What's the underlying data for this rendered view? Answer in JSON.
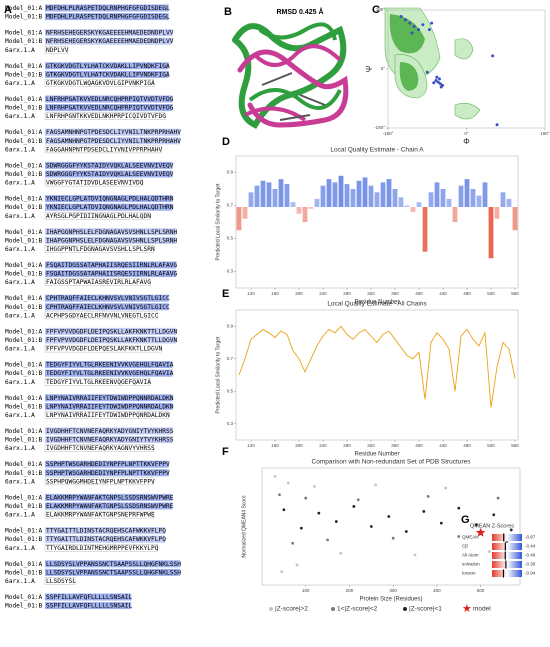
{
  "panels": [
    "A",
    "B",
    "C",
    "D",
    "E",
    "F",
    "G"
  ],
  "structure": {
    "label": "RMSD 0.425 Å"
  },
  "alignment": {
    "labels": [
      "Model_01:A",
      "Model_01:B",
      "6arx.1.A"
    ],
    "blocks": [
      [
        "MDFDHLPLRASPETDQLRNPHGFGFGDISDEGL",
        "MDFDHLPLRASPETDQLRNPHGFGFGDISDEGL",
        null
      ],
      [
        "NFRHSEHEGERSKYKGAEEEEHMAEDEDNDPLVV",
        "NFRHSEHEGERSKYKGAEEEEHMAEDEDNDPLVV",
        "NDPLVV"
      ],
      [
        "GTKGKVDGTLYLHATCKVDAKLLIPVNDKFIGA",
        "GTKGKVDGTLYLHATCKVDAKLLIPVNDKFIGA",
        "GTKGKVDGTLWQAGKVDVLGIPVNKPIGA"
      ],
      [
        "LNFRHPGATKVVEDLNRCQHPRPIQTVVDTVFDG",
        "LNFRHPGATKVVEDLNRCQHPRPIQTVVDTVFDG",
        "LNFRHPGNTKKVEDLNKHPRPICQIVDTVFDG"
      ],
      [
        "FAGSAMNHNPGTPDESDCLIYVNILTNKPRPRHAHV",
        "FAGSAMNHNPGTPDESDCLIYVNILTNKPRPRHAHV",
        "FAGGAHNPNTPDSEDCLIYVNIVPPRPHAHV"
      ],
      [
        "SDWRGGGFYYKSTAIDYVQKLALSEEVNVIVEQV",
        "SDWRGGGFYYKSTAIDYVQKLALSEEVNVIVEQV",
        "VWGGFYGTATIDVDLASEEVNVIVDQ"
      ],
      [
        "YKNIECLGPLATDVIQNGNAGLPDLHALQDTHRN",
        "YKNIECLGPLATDVIQNGNAGLPDLHALQDTHRN",
        "AYRSGLPGPIDIINGNAGLPDLHALQDN"
      ],
      [
        "IHAPGGNPHSLELFDGNAGAVSVSHNLLSPLSRNH",
        "IHAPGGNPHSLELFDGNAGAVSVSHNLLSPLSRNH",
        "IHGGPPNTLFDGNAGAVSVSHLLSPLSRN"
      ],
      [
        "FSQAITDGSSATAPHAIISRQESIIRNLRLAFAVG",
        "FSQAITDGSSATAPHAIISRQESIIRNLRLAFAVG",
        "FAIGSSPTAPWAIASREVIRLRLAFAVG"
      ],
      [
        "CPHTRAQFFAIECLKHNVSVLVNIVSGTLGICC",
        "CPHTRAQFFAIECLKHNVSVLVNIVSGTLGICC",
        "ACPHPSGDYAECLRFNVVNLVNEGTLGICC"
      ],
      [
        "FPFVPVVDGDFLDEIPQSKLLAKFKNKTTLLDGVN",
        "FPFVPVVDGDFLDEIPQSKLLAKFKNKTTLLDGVN",
        "FPFVPVVDGDFLDEPQESLAKFKKTLLDGVN"
      ],
      [
        "TEDGYFIYVLTGLRKEENIVVKVGEHQLFQAVIA",
        "TEDGYFIYVLTGLRKEENIVVKVGEHQLFQAVIA",
        "TEDGYFIYVLTGLRKEENVQGEFQAVIA"
      ],
      [
        "LNPYNAIVRRAIIFEYTDWIWDPPQNNRDALDKN",
        "LNPYNAIVRRAIIFEYTDWIWDPPQNNRDALDKN",
        "LNPYNAIVRRAIIFEYTDWIWDPPQNRDALDKN"
      ],
      [
        "IVGDHHFTCNVNEFAQRKYADYGNIYTVYKHRSS",
        "IVGDHHFTCNVNEFAQRKYADYGNIYTVYKHRSS",
        "IVGDHHFTCNVNEFAQRKYAGNVYVHRSS"
      ],
      [
        "SSPHPTWSGARHDEDIYNPFPLNPTTKKVFPPV",
        "SSPHPTWSGARHDEDIYNPFPLNPTTKKVFPPV",
        "SSPHPQWGGMHDEIYNFPLNPTKKVFPPV"
      ],
      [
        "ELAKKMRPYWANFAKTGNPSLSSDSRNSWVPWRE",
        "ELAKKMRPYWANFAKTGNPSLSSDSRNSWVPWRE",
        "ELAKKMRPYWANFAKTGNPSNEPRFWPWE"
      ],
      [
        "TTYGAITTLDINSTACRQEHSCAFWKKVFLPQ",
        "TTYGAITTLDINSTACRQEHSCAFWKKVFLPQ",
        "TTYGAIRDLDINTMEHGMRPPEVFKKYLPQ"
      ],
      [
        "LLSDSYSLVPPANSSNCTSAAPSSLLQHGFNKLSSH",
        "LLSDSYSLVPPANSSNCTSAAPSSLLQHGFNKLSSH",
        "LLSDSYSL"
      ],
      [
        "SSPFILLAVFQFLLLLLSNSAIL",
        "SSPFILLAVFQFLLLLLSNSAIL",
        null
      ]
    ]
  },
  "chart_data": [
    {
      "type": "scatter",
      "y_label": "Ψ",
      "x_label": "Φ",
      "xlim": [
        -180,
        180
      ],
      "ylim": [
        -180,
        180
      ],
      "xticks": [
        {
          "value": -180,
          "label": "-180°"
        },
        {
          "value": 0,
          "label": "0°"
        },
        {
          "value": 180,
          "label": "180°"
        }
      ],
      "yticks": [
        {
          "value": -180,
          "label": "-180°"
        },
        {
          "value": 0,
          "label": "0°"
        },
        {
          "value": 180,
          "label": "180°"
        }
      ],
      "color": "#3b4fc4",
      "x": [
        -65,
        -60,
        -70,
        -55,
        -75,
        -62,
        -58,
        -68,
        -120,
        -130,
        -110,
        -140,
        -100,
        -125,
        -80,
        -90,
        60,
        -150,
        70,
        -85
      ],
      "values": [
        -40,
        -45,
        -35,
        -50,
        -42,
        -30,
        -55,
        -25,
        130,
        140,
        120,
        150,
        135,
        110,
        140,
        -10,
        40,
        160,
        -170,
        120
      ]
    },
    {
      "type": "bar",
      "title": "Local Quality Estimate - Chain A",
      "y_label": "Predicted Local Similarity to Target",
      "x_label": "Residue Number",
      "xlim": [
        95,
        565
      ],
      "ylim": [
        0.2,
        1.0
      ],
      "xticks": [
        120,
        160,
        200,
        240,
        280,
        320,
        360,
        400,
        440,
        480,
        520,
        560
      ],
      "yticks": [
        0.3,
        0.5,
        0.7,
        0.9
      ],
      "colors": [
        "#e8604a",
        "#4a6fe0"
      ],
      "x": [
        100,
        110,
        120,
        130,
        140,
        150,
        160,
        170,
        180,
        190,
        200,
        210,
        220,
        230,
        240,
        250,
        260,
        270,
        280,
        290,
        300,
        310,
        320,
        330,
        340,
        350,
        360,
        370,
        380,
        390,
        400,
        410,
        420,
        430,
        440,
        450,
        460,
        470,
        480,
        490,
        500,
        510,
        520,
        530,
        540,
        550,
        560
      ],
      "values": [
        0.55,
        0.62,
        0.78,
        0.82,
        0.85,
        0.84,
        0.8,
        0.86,
        0.83,
        0.72,
        0.65,
        0.6,
        0.68,
        0.74,
        0.82,
        0.86,
        0.84,
        0.88,
        0.83,
        0.8,
        0.85,
        0.87,
        0.82,
        0.78,
        0.84,
        0.86,
        0.8,
        0.75,
        0.7,
        0.66,
        0.72,
        0.42,
        0.78,
        0.84,
        0.8,
        0.74,
        0.6,
        0.82,
        0.86,
        0.8,
        0.76,
        0.84,
        0.38,
        0.62,
        0.78,
        0.74,
        0.55
      ]
    },
    {
      "type": "line",
      "title": "Local Quality Estimate - All Chains",
      "y_label": "Predicted Local Similarity to Target",
      "x_label": "Residue Number",
      "xlim": [
        95,
        565
      ],
      "ylim": [
        0.2,
        1.0
      ],
      "xticks": [
        120,
        160,
        200,
        240,
        280,
        320,
        360,
        400,
        440,
        480,
        520,
        560
      ],
      "yticks": [
        0.3,
        0.5,
        0.7,
        0.9
      ],
      "color": "#e8a317",
      "x": [
        100,
        110,
        120,
        130,
        140,
        150,
        160,
        170,
        180,
        190,
        200,
        210,
        220,
        230,
        240,
        250,
        260,
        270,
        280,
        290,
        300,
        310,
        320,
        330,
        340,
        350,
        360,
        370,
        380,
        390,
        400,
        410,
        420,
        430,
        440,
        450,
        460,
        470,
        480,
        490,
        500,
        510,
        520,
        530,
        540,
        550,
        560
      ],
      "values": [
        0.6,
        0.7,
        0.82,
        0.85,
        0.88,
        0.86,
        0.83,
        0.87,
        0.85,
        0.75,
        0.7,
        0.62,
        0.7,
        0.78,
        0.84,
        0.88,
        0.86,
        0.9,
        0.85,
        0.82,
        0.86,
        0.88,
        0.84,
        0.8,
        0.85,
        0.87,
        0.82,
        0.77,
        0.72,
        0.7,
        0.74,
        0.45,
        0.8,
        0.86,
        0.82,
        0.76,
        0.5,
        0.84,
        0.88,
        0.82,
        0.78,
        0.86,
        0.4,
        0.65,
        0.8,
        0.76,
        0.58
      ]
    },
    {
      "type": "scatter",
      "title": "Comparison with Non-redundant Set of PDB Structures",
      "y_label": "Normalized QMEAN4 Score",
      "x_label": "Protein Size (Residues)",
      "xlim": [
        0,
        590
      ],
      "ylim": [
        -4,
        3
      ],
      "xticks": [
        100,
        200,
        300,
        400,
        500
      ],
      "series": [
        {
          "name": "|Z-score|>2",
          "color": "#c4c4c4",
          "x": [
            30,
            45,
            60,
            80,
            120,
            180,
            260,
            350,
            420,
            520
          ],
          "values": [
            2.5,
            -3.2,
            2.1,
            -2.8,
            1.9,
            -2.1,
            2.0,
            -2.2,
            1.8,
            -2.0
          ]
        },
        {
          "name": "1<|Z-score|<2",
          "color": "#7a7a7a",
          "x": [
            40,
            70,
            100,
            150,
            220,
            300,
            380,
            450,
            540,
            560
          ],
          "values": [
            1.4,
            -1.5,
            1.2,
            -1.3,
            1.1,
            -1.2,
            1.3,
            -1.1,
            1.2,
            -1.4
          ]
        },
        {
          "name": "|Z-score|<1",
          "color": "#262626",
          "x": [
            50,
            90,
            130,
            170,
            210,
            250,
            290,
            330,
            370,
            410,
            450,
            490,
            530,
            570
          ],
          "values": [
            0.5,
            -0.6,
            0.3,
            -0.2,
            0.7,
            -0.5,
            0.1,
            -0.8,
            0.4,
            -0.3,
            0.6,
            -0.4,
            0.2,
            -0.7
          ]
        },
        {
          "name": "model",
          "color": "#e02020",
          "marker": "star",
          "x": [
            500
          ],
          "values": [
            -0.87
          ]
        }
      ]
    },
    {
      "type": "zbar",
      "title": "QMEAN Z-Scores",
      "xlim": [
        -4,
        4
      ],
      "categories": [
        "QMEAN",
        "Cβ",
        "All Atom",
        "solvation",
        "torsion"
      ],
      "values": [
        -0.87,
        -0.44,
        -0.46,
        -0.3,
        -0.94
      ],
      "value_labels": [
        "-0.87",
        "-0.44",
        "-0.46",
        "-0.30",
        "-0.94"
      ]
    }
  ]
}
